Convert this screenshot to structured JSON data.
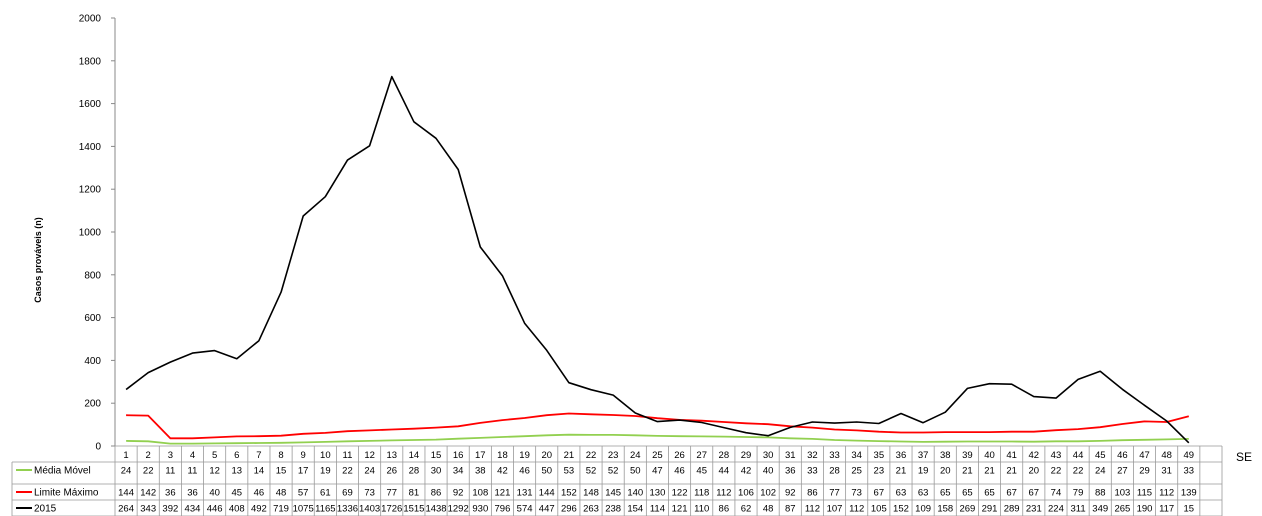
{
  "chart_data": {
    "type": "line",
    "title": "",
    "ylabel": "Casos prováveis (n)",
    "xlabel": "SE",
    "ylim": [
      0,
      2000
    ],
    "yticks": [
      0,
      200,
      400,
      600,
      800,
      1000,
      1200,
      1400,
      1600,
      1800,
      2000
    ],
    "grid": false,
    "legend": "data-table-left",
    "categories": [
      "1",
      "2",
      "3",
      "4",
      "5",
      "6",
      "7",
      "8",
      "9",
      "10",
      "11",
      "12",
      "13",
      "14",
      "15",
      "16",
      "17",
      "18",
      "19",
      "20",
      "21",
      "22",
      "23",
      "24",
      "25",
      "26",
      "27",
      "28",
      "29",
      "30",
      "31",
      "32",
      "33",
      "34",
      "35",
      "36",
      "37",
      "38",
      "39",
      "40",
      "41",
      "42",
      "43",
      "44",
      "45",
      "46",
      "47",
      "48",
      "49"
    ],
    "series": [
      {
        "name": "Média Móvel",
        "color": "#92D050",
        "values": [
          24,
          22,
          11,
          11,
          12,
          13,
          14,
          15,
          17,
          19,
          22,
          24,
          26,
          28,
          30,
          34,
          38,
          42,
          46,
          50,
          53,
          52,
          52,
          50,
          47,
          46,
          45,
          44,
          42,
          40,
          36,
          33,
          28,
          25,
          23,
          21,
          19,
          20,
          21,
          21,
          21,
          20,
          22,
          22,
          24,
          27,
          29,
          31,
          33
        ]
      },
      {
        "name": "Limite Máximo",
        "color": "#FF0000",
        "values": [
          144,
          142,
          36,
          36,
          40,
          45,
          46,
          48,
          57,
          61,
          69,
          73,
          77,
          81,
          86,
          92,
          108,
          121,
          131,
          144,
          152,
          148,
          145,
          140,
          130,
          122,
          118,
          112,
          106,
          102,
          92,
          86,
          77,
          73,
          67,
          63,
          63,
          65,
          65,
          65,
          67,
          67,
          74,
          79,
          88,
          103,
          115,
          112,
          139
        ]
      },
      {
        "name": "2015",
        "color": "#000000",
        "values": [
          264,
          343,
          392,
          434,
          446,
          408,
          492,
          719,
          1075,
          1165,
          1336,
          1403,
          1726,
          1515,
          1438,
          1292,
          930,
          796,
          574,
          447,
          296,
          263,
          238,
          154,
          114,
          121,
          110,
          86,
          62,
          48,
          87,
          112,
          107,
          112,
          105,
          152,
          109,
          158,
          269,
          291,
          289,
          231,
          224,
          311,
          349,
          265,
          190,
          117,
          15
        ]
      }
    ]
  }
}
